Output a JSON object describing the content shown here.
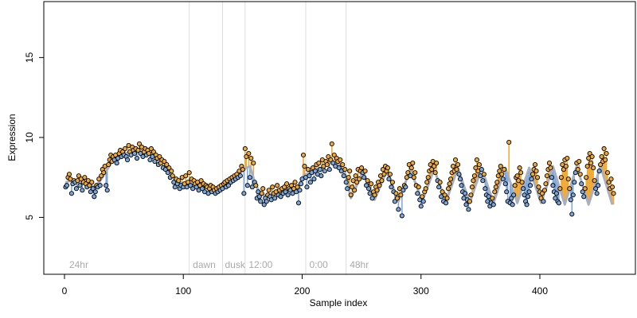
{
  "chart_data": {
    "type": "scatter",
    "xlabel": "Sample index",
    "ylabel": "Expression",
    "xlim": [
      -17.4,
      480.4
    ],
    "ylim": [
      1.44,
      18.5
    ],
    "xticks": [
      0,
      100,
      200,
      300,
      400
    ],
    "yticks": [
      5,
      10,
      15
    ],
    "point_color": "#000000",
    "above_color": "#f0a830",
    "below_color": "#7aa6dc",
    "fit_color": "#a9b0c2",
    "vlines": [
      105,
      133,
      152,
      203,
      237
    ],
    "vline_color": "#dddddd",
    "annotations": [
      {
        "text": "24hr",
        "x": 2,
        "y": 2
      },
      {
        "text": "dawn",
        "x": 106,
        "y": 2
      },
      {
        "text": "dusk",
        "x": 133,
        "y": 2
      },
      {
        "text": "12:00",
        "x": 153,
        "y": 2
      },
      {
        "text": "0:00",
        "x": 204,
        "y": 2
      },
      {
        "text": "48hr",
        "x": 238,
        "y": 2
      }
    ],
    "x": [
      1,
      2,
      3,
      4,
      5,
      6,
      7,
      8,
      9,
      10,
      11,
      12,
      13,
      14,
      15,
      16,
      17,
      18,
      19,
      20,
      21,
      22,
      23,
      24,
      25,
      26,
      27,
      28,
      29,
      30,
      31,
      32,
      33,
      34,
      35,
      36,
      37,
      38,
      39,
      40,
      41,
      42,
      43,
      44,
      45,
      46,
      47,
      48,
      49,
      50,
      51,
      52,
      53,
      54,
      55,
      56,
      57,
      58,
      59,
      60,
      61,
      62,
      63,
      64,
      65,
      66,
      67,
      68,
      69,
      70,
      71,
      72,
      73,
      74,
      75,
      76,
      77,
      78,
      79,
      80,
      81,
      82,
      83,
      84,
      85,
      86,
      87,
      88,
      89,
      90,
      91,
      92,
      93,
      94,
      95,
      96,
      97,
      98,
      99,
      100,
      101,
      102,
      103,
      104,
      105,
      106,
      107,
      108,
      109,
      110,
      111,
      112,
      113,
      114,
      115,
      116,
      117,
      118,
      119,
      120,
      121,
      122,
      123,
      124,
      125,
      126,
      127,
      128,
      129,
      130,
      131,
      132,
      133,
      134,
      135,
      136,
      137,
      138,
      139,
      140,
      141,
      142,
      143,
      144,
      145,
      146,
      147,
      148,
      149,
      150,
      151,
      152,
      153,
      154,
      155,
      156,
      157,
      158,
      159,
      160,
      161,
      162,
      163,
      164,
      165,
      166,
      167,
      168,
      169,
      170,
      171,
      172,
      173,
      174,
      175,
      176,
      177,
      178,
      179,
      180,
      181,
      182,
      183,
      184,
      185,
      186,
      187,
      188,
      189,
      190,
      191,
      192,
      193,
      194,
      195,
      196,
      197,
      198,
      199,
      200,
      201,
      202,
      203,
      204,
      205,
      206,
      207,
      208,
      209,
      210,
      211,
      212,
      213,
      214,
      215,
      216,
      217,
      218,
      219,
      220,
      221,
      222,
      223,
      224,
      225,
      226,
      227,
      228,
      229,
      230,
      231,
      232,
      233,
      234,
      235,
      236,
      237,
      238,
      239,
      240,
      241,
      242,
      243,
      244,
      245,
      246,
      247,
      248,
      249,
      250,
      251,
      252,
      253,
      254,
      255,
      256,
      257,
      258,
      259,
      260,
      261,
      262,
      263,
      264,
      265,
      266,
      267,
      268,
      269,
      270,
      271,
      272,
      273,
      274,
      275,
      276,
      277,
      278,
      279,
      280,
      281,
      282,
      283,
      284,
      285,
      286,
      287,
      288,
      289,
      290,
      291,
      292,
      293,
      294,
      295,
      296,
      297,
      298,
      299,
      300,
      301,
      302,
      303,
      304,
      305,
      306,
      307,
      308,
      309,
      310,
      311,
      312,
      313,
      314,
      315,
      316,
      317,
      318,
      319,
      320,
      321,
      322,
      323,
      324,
      325,
      326,
      327,
      328,
      329,
      330,
      331,
      332,
      333,
      334,
      335,
      336,
      337,
      338,
      339,
      340,
      341,
      342,
      343,
      344,
      345,
      346,
      347,
      348,
      349,
      350,
      351,
      352,
      353,
      354,
      355,
      356,
      357,
      358,
      359,
      360,
      361,
      362,
      363,
      364,
      365,
      366,
      367,
      368,
      369,
      370,
      371,
      372,
      373,
      374,
      375,
      376,
      377,
      378,
      379,
      380,
      381,
      382,
      383,
      384,
      385,
      386,
      387,
      388,
      389,
      390,
      391,
      392,
      393,
      394,
      395,
      396,
      397,
      398,
      399,
      400,
      401,
      402,
      403,
      404,
      405,
      406,
      407,
      408,
      409,
      410,
      411,
      412,
      413,
      414,
      415,
      416,
      417,
      418,
      419,
      420,
      421,
      422,
      423,
      424,
      425,
      426,
      427,
      428,
      429,
      430,
      431,
      432,
      433,
      434,
      435,
      436,
      437,
      438,
      439,
      440,
      441,
      442,
      443,
      444,
      445,
      446,
      447,
      448,
      449,
      450,
      451,
      452,
      453,
      454,
      455,
      456,
      457,
      458,
      459,
      460,
      461,
      462
    ],
    "values": [
      6.9,
      7.0,
      7.5,
      7.7,
      7.4,
      6.5,
      7.1,
      7.3,
      7.2,
      6.8,
      7.3,
      7.6,
      7.0,
      7.4,
      6.7,
      7.2,
      7.5,
      7.1,
      6.9,
      7.3,
      7.0,
      6.6,
      7.2,
      6.8,
      6.3,
      6.6,
      7.0,
      6.9,
      7.4,
      7.0,
      7.6,
      8.0,
      7.8,
      8.2,
      7.0,
      6.7,
      8.3,
      8.6,
      8.9,
      8.5,
      8.8,
      8.6,
      8.9,
      8.4,
      8.7,
      9.0,
      9.2,
      8.8,
      9.1,
      8.9,
      9.3,
      8.8,
      8.6,
      9.5,
      9.1,
      8.9,
      9.4,
      9.2,
      9.0,
      9.3,
      8.7,
      9.2,
      9.6,
      9.0,
      9.4,
      8.8,
      9.1,
      9.3,
      8.9,
      9.2,
      9.0,
      8.6,
      9.3,
      8.8,
      9.1,
      8.5,
      8.9,
      8.7,
      8.3,
      8.8,
      8.4,
      8.6,
      8.1,
      8.5,
      8.0,
      8.3,
      7.8,
      8.1,
      7.5,
      7.9,
      7.6,
      7.2,
      6.9,
      7.4,
      7.1,
      7.3,
      6.8,
      7.0,
      7.5,
      6.9,
      7.1,
      7.6,
      6.9,
      7.2,
      7.8,
      7.0,
      7.4,
      6.8,
      7.3,
      7.1,
      6.9,
      7.2,
      6.7,
      7.0,
      7.3,
      6.8,
      7.1,
      6.6,
      7.0,
      6.9,
      6.5,
      6.8,
      7.0,
      6.6,
      6.9,
      6.7,
      6.5,
      6.8,
      6.6,
      6.9,
      6.7,
      7.0,
      6.8,
      7.1,
      7.2,
      6.9,
      7.3,
      7.0,
      7.4,
      7.2,
      7.5,
      7.3,
      7.6,
      7.4,
      7.7,
      7.5,
      7.9,
      7.6,
      8.2,
      8.0,
      6.5,
      9.3,
      8.8,
      7.0,
      9.0,
      7.5,
      8.7,
      6.9,
      8.4,
      7.2,
      7.0,
      6.2,
      6.6,
      6.3,
      6.0,
      6.5,
      6.8,
      5.8,
      6.2,
      6.0,
      6.4,
      6.7,
      6.3,
      6.1,
      6.9,
      6.5,
      6.2,
      6.6,
      7.0,
      6.4,
      6.7,
      6.3,
      6.8,
      6.5,
      6.9,
      6.6,
      7.1,
      6.4,
      6.8,
      6.7,
      7.0,
      6.5,
      6.8,
      7.2,
      6.6,
      6.9,
      5.9,
      6.7,
      7.1,
      7.4,
      8.9,
      8.2,
      7.5,
      6.9,
      8.0,
      7.6,
      7.2,
      7.8,
      8.1,
      7.4,
      7.9,
      8.3,
      7.7,
      8.4,
      8.0,
      7.6,
      8.6,
      8.2,
      7.9,
      8.5,
      8.3,
      8.8,
      8.0,
      8.6,
      9.6,
      8.4,
      8.9,
      8.2,
      8.7,
      8.5,
      8.1,
      8.6,
      7.9,
      8.3,
      7.6,
      8.0,
      7.2,
      6.8,
      7.5,
      7.9,
      6.4,
      6.9,
      7.3,
      6.7,
      7.6,
      7.2,
      8.0,
      7.4,
      7.9,
      8.1,
      7.8,
      7.5,
      7.9,
      7.0,
      7.3,
      6.8,
      6.5,
      7.1,
      6.2,
      6.6,
      6.4,
      6.9,
      6.7,
      7.2,
      7.0,
      7.6,
      7.3,
      8.0,
      7.7,
      8.2,
      7.9,
      8.1,
      7.4,
      7.7,
      6.9,
      7.2,
      6.6,
      6.0,
      6.5,
      6.2,
      5.5,
      6.8,
      6.4,
      5.1,
      6.7,
      7.0,
      6.9,
      7.5,
      7.8,
      8.3,
      7.6,
      8.1,
      8.4,
      7.5,
      7.8,
      7.0,
      6.5,
      6.9,
      6.1,
      5.7,
      6.3,
      6.0,
      6.6,
      6.8,
      7.2,
      7.5,
      7.9,
      8.3,
      8.0,
      8.5,
      8.2,
      7.8,
      8.4,
      7.3,
      6.9,
      7.2,
      6.3,
      6.6,
      6.0,
      6.4,
      5.9,
      6.2,
      6.8,
      7.1,
      7.4,
      7.8,
      8.2,
      7.9,
      8.6,
      8.0,
      8.3,
      7.7,
      7.4,
      7.0,
      6.6,
      6.2,
      6.5,
      5.8,
      6.1,
      5.5,
      6.0,
      6.4,
      6.9,
      7.3,
      7.6,
      8.1,
      8.6,
      7.9,
      8.3,
      7.6,
      8.0,
      7.3,
      7.7,
      6.8,
      6.4,
      6.0,
      6.3,
      5.7,
      5.9,
      6.2,
      5.8,
      6.6,
      6.9,
      7.2,
      7.6,
      7.9,
      8.2,
      7.7,
      7.4,
      8.0,
      7.1,
      6.6,
      6.0,
      9.7,
      5.9,
      6.2,
      5.8,
      6.4,
      7.0,
      7.5,
      7.6,
      7.3,
      8.1,
      7.8,
      7.2,
      6.8,
      6.4,
      6.0,
      5.8,
      6.3,
      6.6,
      7.0,
      7.4,
      7.7,
      8.0,
      8.3,
      7.9,
      7.5,
      6.9,
      6.6,
      6.2,
      6.5,
      6.0,
      6.7,
      7.1,
      7.6,
      8.0,
      8.4,
      8.1,
      7.5,
      7.0,
      6.6,
      6.2,
      6.5,
      6.0,
      5.9,
      6.8,
      7.5,
      8.3,
      8.0,
      8.6,
      8.2,
      8.7,
      7.4,
      6.8,
      6.1,
      5.2,
      6.4,
      7.2,
      7.8,
      8.4,
      8.0,
      8.5,
      7.7,
      7.1,
      6.6,
      6.3,
      6.8,
      7.5,
      8.2,
      8.7,
      9.0,
      8.4,
      8.8,
      8.1,
      7.3,
      6.8,
      6.5,
      7.0,
      7.9,
      8.3,
      8.8,
      8.5,
      9.3,
      8.6,
      9.0,
      7.8,
      7.2,
      6.8,
      7.4,
      6.9,
      6.5
    ],
    "fit": {
      "x": [
        1,
        6,
        11,
        16,
        21,
        26,
        31,
        36,
        41,
        46,
        51,
        56,
        61,
        66,
        71,
        76,
        81,
        86,
        91,
        96,
        101,
        106,
        111,
        116,
        121,
        126,
        131,
        136,
        141,
        146,
        151,
        156,
        161,
        166,
        171,
        176,
        181,
        186,
        191,
        196,
        201,
        206,
        211,
        216,
        221,
        226,
        231,
        236,
        241,
        246,
        251,
        256,
        261,
        266,
        271,
        276,
        281,
        286,
        291,
        296,
        301,
        306,
        311,
        316,
        321,
        326,
        331,
        336,
        341,
        346,
        351,
        356,
        361,
        366,
        371,
        376,
        381,
        386,
        391,
        396,
        401,
        406,
        411,
        416,
        421,
        426,
        431,
        436,
        441,
        446,
        451,
        456,
        461
      ],
      "values": [
        7.2,
        7.3,
        7.2,
        7.1,
        7.0,
        6.9,
        7.4,
        8.0,
        8.6,
        8.9,
        9.0,
        9.1,
        9.1,
        9.1,
        9.0,
        8.8,
        8.4,
        8.0,
        7.6,
        7.2,
        7.1,
        7.1,
        7.0,
        6.9,
        6.8,
        6.7,
        6.8,
        7.0,
        7.3,
        7.6,
        8.0,
        8.2,
        7.0,
        6.4,
        6.4,
        6.5,
        6.6,
        6.7,
        6.8,
        6.8,
        7.6,
        7.8,
        8.0,
        8.1,
        8.3,
        8.5,
        8.3,
        7.8,
        6.2,
        7.0,
        7.9,
        7.0,
        6.1,
        7.0,
        7.9,
        7.0,
        6.0,
        7.0,
        8.0,
        7.0,
        6.0,
        7.0,
        8.0,
        7.0,
        6.0,
        7.0,
        8.1,
        7.0,
        5.9,
        7.0,
        8.1,
        7.0,
        5.9,
        7.0,
        8.1,
        7.0,
        5.9,
        7.0,
        8.1,
        7.0,
        5.9,
        7.0,
        8.2,
        7.0,
        5.8,
        7.0,
        8.2,
        7.0,
        5.8,
        7.0,
        8.2,
        7.0,
        5.8
      ]
    }
  }
}
